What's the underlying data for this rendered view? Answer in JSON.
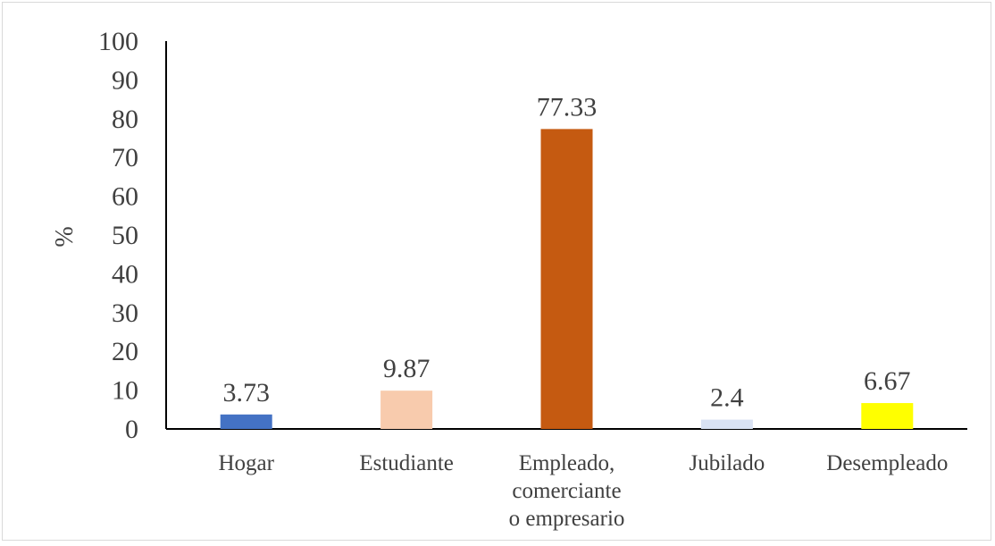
{
  "chart_data": {
    "type": "bar",
    "categories": [
      [
        "Hogar"
      ],
      [
        "Estudiante"
      ],
      [
        "Empleado,",
        "comerciante",
        "o empresario"
      ],
      [
        "Jubilado"
      ],
      [
        "Desempleado"
      ]
    ],
    "values": [
      3.73,
      9.87,
      77.33,
      2.4,
      6.67
    ],
    "value_labels": [
      "3.73",
      "9.87",
      "77.33",
      "2.4",
      "6.67"
    ],
    "colors": [
      "#4472c4",
      "#f8cbad",
      "#c55a11",
      "#d9e2f3",
      "#ffff00"
    ],
    "ylabel": "%",
    "xlabel": "",
    "title": "",
    "ylim": [
      0,
      100
    ],
    "yticks": [
      0,
      10,
      20,
      30,
      40,
      50,
      60,
      70,
      80,
      90,
      100
    ],
    "grid": false,
    "legend": "none"
  }
}
